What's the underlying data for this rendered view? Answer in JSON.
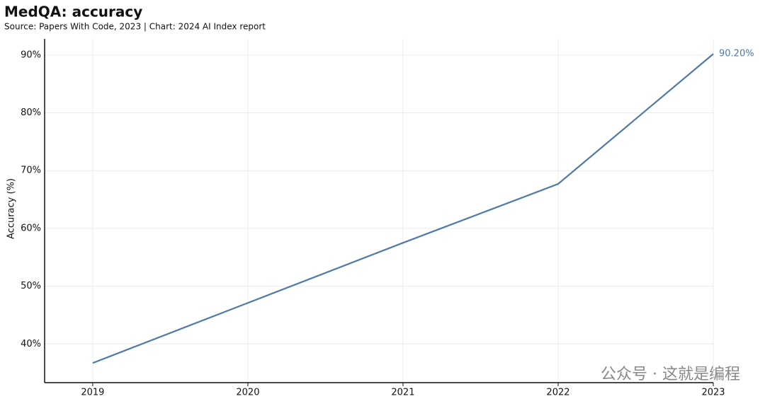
{
  "chart_data": {
    "type": "line",
    "title": "MedQA: accuracy",
    "subtitle": "Source: Papers With Code, 2023 | Chart: 2024 AI Index report",
    "y_label": "Accuracy (%)",
    "x": [
      2019,
      2020,
      2021,
      2022,
      2023
    ],
    "values": [
      36.7,
      47.1,
      57.5,
      67.7,
      90.2
    ],
    "value_labels": [
      null,
      null,
      null,
      null,
      "90.20%"
    ],
    "color": "#4e79a7",
    "xlim": [
      2018.69,
      2023
    ],
    "xticks": [
      2019,
      2020,
      2021,
      2022,
      2023
    ],
    "ylim": [
      33.3,
      92.8
    ],
    "yticks": [
      {
        "value": 40,
        "label": "40%"
      },
      {
        "value": 50,
        "label": "50%"
      },
      {
        "value": 60,
        "label": "60%"
      },
      {
        "value": 70,
        "label": "70%"
      },
      {
        "value": 80,
        "label": "80%"
      },
      {
        "value": 90,
        "label": "90%"
      }
    ],
    "grid": true,
    "watermark": "公众号 · 这就是编程"
  }
}
